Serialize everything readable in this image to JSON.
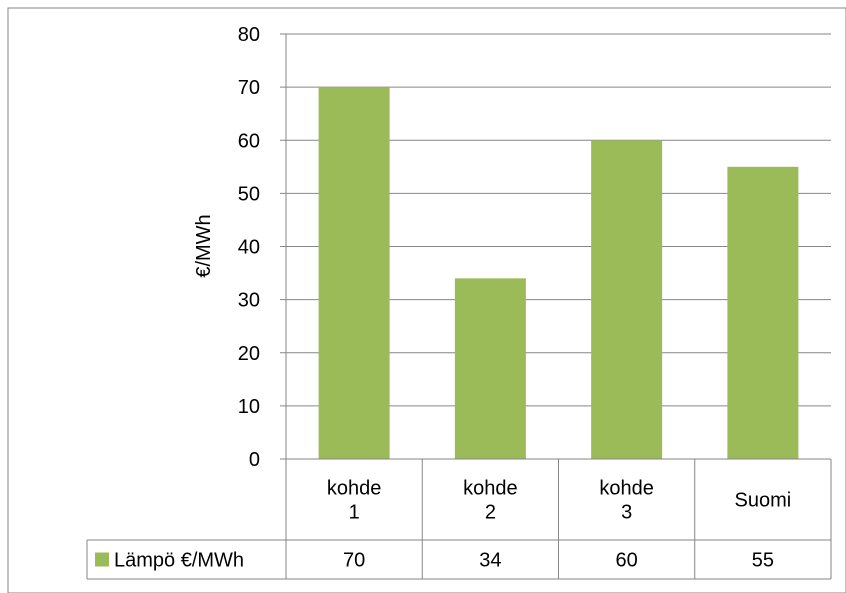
{
  "chart_data": {
    "type": "bar",
    "categories": [
      [
        "kohde",
        "1"
      ],
      [
        "kohde",
        "2"
      ],
      [
        "kohde",
        "3"
      ],
      [
        "Suomi"
      ]
    ],
    "series": [
      {
        "name": "Lämpö €/MWh",
        "values": [
          70,
          34,
          60,
          55
        ],
        "color": "#9bbb59"
      }
    ],
    "ylabel": "€/MWh",
    "ylim": [
      0,
      80
    ],
    "yticks": [
      0,
      10,
      20,
      30,
      40,
      50,
      60,
      70,
      80
    ],
    "grid": true,
    "data_table": {
      "row_label": "Lämpö €/MWh",
      "values": [
        "70",
        "34",
        "60",
        "55"
      ]
    }
  }
}
